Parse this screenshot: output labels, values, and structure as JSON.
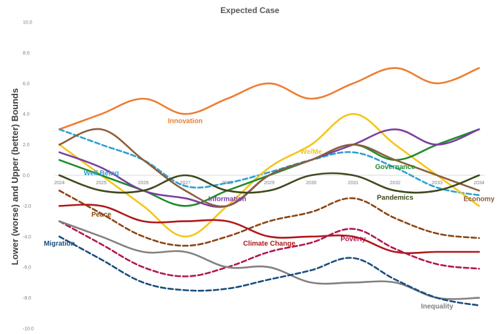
{
  "chart_data": {
    "type": "line",
    "title": "Expected Case",
    "xlabel": "",
    "ylabel": "Lower (worse) and Upper (better) Bounds",
    "x": [
      "2024",
      "2025",
      "2026",
      "2027",
      "2028",
      "2029",
      "2030",
      "2031",
      "2032",
      "2033",
      "2034"
    ],
    "y_ticks": [
      "10.0",
      "8.0",
      "6.0",
      "4.0",
      "2.0",
      "0.0",
      "-2.0",
      "-4.0",
      "-6.0",
      "-8.0",
      "-10.0"
    ],
    "ylim": [
      -10,
      10
    ],
    "grid": false,
    "legend": "none",
    "series": [
      {
        "name": "Innovation",
        "color": "#ed7d31",
        "style": "solid",
        "values": [
          3.0,
          4.0,
          5.0,
          4.0,
          5.0,
          6.0,
          5.0,
          6.0,
          7.0,
          6.0,
          7.0
        ]
      },
      {
        "name": "Well Being",
        "color": "#2e9fd0",
        "style": "dashed",
        "values": [
          3.0,
          2.0,
          1.0,
          -0.7,
          -0.5,
          0.2,
          1.0,
          1.5,
          0.5,
          -0.8,
          -1.3
        ]
      },
      {
        "name": "We/Me",
        "color": "#f5c518",
        "style": "solid",
        "values": [
          2.0,
          0.0,
          -2.0,
          -4.0,
          -2.0,
          0.5,
          2.0,
          4.0,
          2.0,
          0.0,
          -2.0
        ]
      },
      {
        "name": "Governance",
        "color": "#1e8c2a",
        "style": "solid",
        "values": [
          1.0,
          0.0,
          -1.0,
          -2.0,
          -1.0,
          0.0,
          1.0,
          2.0,
          1.0,
          2.0,
          3.0
        ]
      },
      {
        "name": "Information",
        "color": "#7b3fa0",
        "style": "solid",
        "values": [
          1.5,
          0.5,
          -1.0,
          -1.5,
          -2.0,
          0.0,
          1.0,
          2.0,
          3.0,
          2.0,
          3.0
        ]
      },
      {
        "name": "Economy",
        "color": "#8b5e3c",
        "style": "solid",
        "values": [
          2.0,
          3.0,
          1.0,
          -1.0,
          -2.0,
          0.0,
          1.0,
          2.0,
          1.0,
          0.0,
          -1.0
        ]
      },
      {
        "name": "Pandemics",
        "color": "#3d4a1a",
        "style": "solid",
        "values": [
          0.0,
          -1.0,
          -1.0,
          0.0,
          -1.0,
          -1.0,
          0.0,
          0.0,
          -1.0,
          -1.0,
          0.0
        ]
      },
      {
        "name": "Peace",
        "color": "#8b4513",
        "style": "dashed",
        "values": [
          -1.0,
          -2.5,
          -4.0,
          -4.6,
          -4.0,
          -3.0,
          -2.4,
          -1.5,
          -2.8,
          -3.8,
          -4.1
        ]
      },
      {
        "name": "Climate Change",
        "color": "#b01818",
        "style": "solid",
        "values": [
          -2.0,
          -2.0,
          -3.0,
          -3.0,
          -3.0,
          -4.0,
          -4.0,
          -4.0,
          -5.0,
          -5.0,
          -5.0
        ]
      },
      {
        "name": "Poverty",
        "color": "#b01850",
        "style": "dashed",
        "values": [
          -3.0,
          -4.5,
          -6.0,
          -6.6,
          -6.0,
          -5.0,
          -4.4,
          -3.5,
          -4.8,
          -5.8,
          -6.1
        ]
      },
      {
        "name": "Inequality",
        "color": "#808080",
        "style": "solid",
        "values": [
          -3.0,
          -4.0,
          -5.0,
          -5.0,
          -6.0,
          -6.0,
          -7.0,
          -7.0,
          -7.0,
          -8.0,
          -8.0
        ]
      },
      {
        "name": "Migration",
        "color": "#1a4d80",
        "style": "dashed",
        "values": [
          -4.0,
          -5.5,
          -7.0,
          -7.5,
          -7.4,
          -6.8,
          -6.2,
          -5.4,
          -6.8,
          -8.0,
          -8.5
        ]
      }
    ],
    "annotations": [
      {
        "text": "Innovation",
        "series": "Innovation",
        "x": "2027",
        "y": 3.4
      },
      {
        "text": "Well Being",
        "series": "Well Being",
        "x": "2025",
        "y": 0.0
      },
      {
        "text": "We/Me",
        "series": "We/Me",
        "x": "2030",
        "y": 1.4
      },
      {
        "text": "Governance",
        "series": "Governance",
        "x": "2032",
        "y": 0.4
      },
      {
        "text": "Information",
        "series": "Information",
        "x": "2028",
        "y": -1.7
      },
      {
        "text": "Economy",
        "series": "Economy",
        "x": "2034",
        "y": -1.7
      },
      {
        "text": "Pandemics",
        "series": "Pandemics",
        "x": "2032",
        "y": -1.6
      },
      {
        "text": "Peace",
        "series": "Peace",
        "x": "2025",
        "y": -2.7
      },
      {
        "text": "Climate Change",
        "series": "Climate Change",
        "x": "2029",
        "y": -4.6
      },
      {
        "text": "Poverty",
        "series": "Poverty",
        "x": "2031",
        "y": -4.3
      },
      {
        "text": "Inequality",
        "series": "Inequality",
        "x": "2033",
        "y": -8.7
      },
      {
        "text": "Migration",
        "series": "Migration",
        "x": "2024",
        "y": -4.6
      }
    ]
  }
}
